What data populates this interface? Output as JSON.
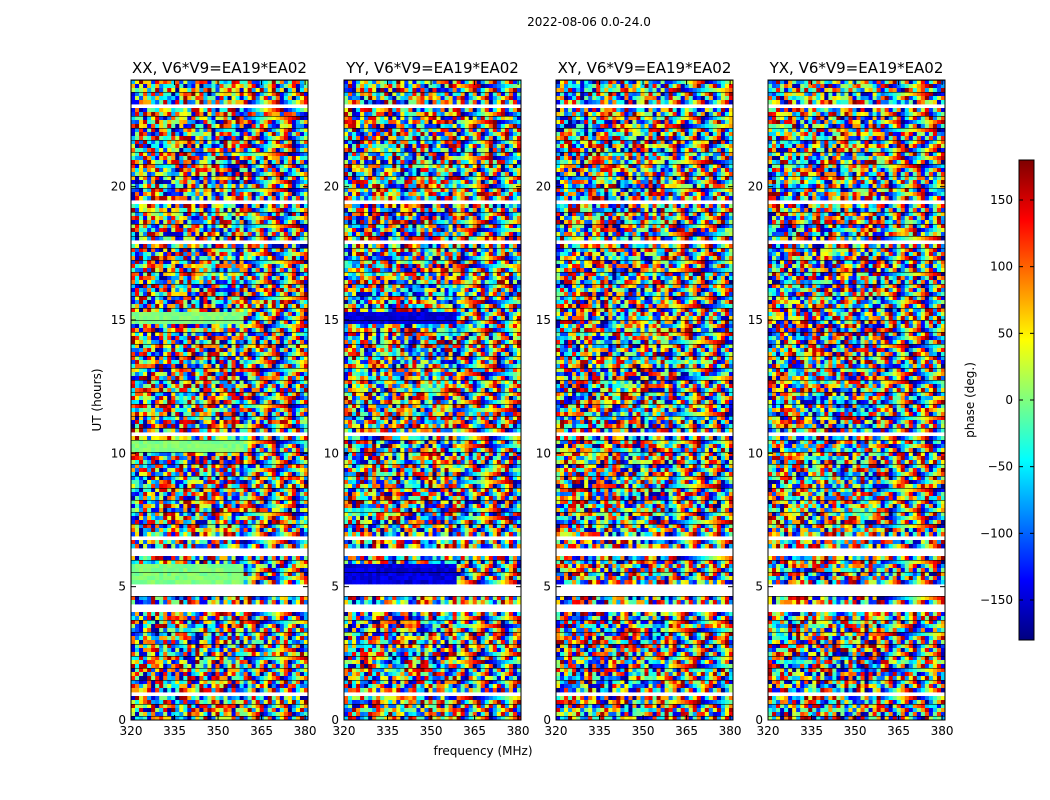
{
  "figure": {
    "suptitle": "2022-08-06 0.0-24.0"
  },
  "chart_data": {
    "type": "heatmap",
    "xlabel": "frequency (MHz)",
    "ylabel": "UT (hours)",
    "xlim": [
      320,
      381
    ],
    "ylim": [
      0,
      24
    ],
    "xticks": [
      320,
      335,
      350,
      365,
      380
    ],
    "yticks": [
      0,
      5,
      10,
      15,
      20
    ],
    "colorbar": {
      "label": "phase (deg.)",
      "range": [
        -180,
        180
      ],
      "ticks": [
        -150,
        -100,
        -50,
        0,
        50,
        100,
        150
      ],
      "tick_labels": [
        "−150",
        "−100",
        "−50",
        "0",
        "50",
        "100",
        "150"
      ],
      "colormap": [
        "#00007f",
        "#0000ff",
        "#007fff",
        "#00ffff",
        "#7fff7f",
        "#ffff00",
        "#ff7f00",
        "#ff0000",
        "#7f0000"
      ]
    },
    "panels": [
      {
        "title": "XX, V6*V9=EA19*EA02"
      },
      {
        "title": "YY, V6*V9=EA19*EA02"
      },
      {
        "title": "XY, V6*V9=EA19*EA02"
      },
      {
        "title": "YX, V6*V9=EA19*EA02"
      }
    ],
    "flagged_ut_hours": [
      [
        0.38,
        0.46
      ],
      [
        0.95,
        1.0
      ],
      [
        1.5,
        1.56
      ],
      [
        2.55,
        2.6
      ],
      [
        2.95,
        3.05
      ],
      [
        4.15,
        4.2
      ],
      [
        4.55,
        4.62
      ],
      [
        6.05,
        6.1
      ],
      [
        7.95,
        8.0
      ],
      [
        8.5,
        8.6
      ],
      [
        9.3,
        9.35
      ],
      [
        10.95,
        11.0
      ],
      [
        12.45,
        12.5
      ],
      [
        13.2,
        13.3
      ],
      [
        14.05,
        14.1
      ],
      [
        15.9,
        15.95
      ],
      [
        16.2,
        16.25
      ],
      [
        17.15,
        17.2
      ],
      [
        17.6,
        17.8
      ],
      [
        18.9,
        19.4
      ],
      [
        19.65,
        19.95
      ],
      [
        20.95,
        21.05
      ],
      [
        22.15,
        22.2
      ],
      [
        22.95,
        23.05
      ],
      [
        23.05,
        23.1
      ]
    ]
  }
}
